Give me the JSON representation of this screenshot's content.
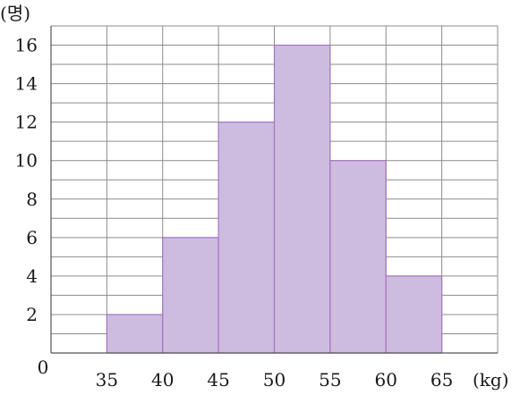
{
  "chart_data": {
    "type": "bar",
    "title": "",
    "histogram": true,
    "bins": [
      {
        "from": 35,
        "to": 40,
        "value": 2
      },
      {
        "from": 40,
        "to": 45,
        "value": 6
      },
      {
        "from": 45,
        "to": 50,
        "value": 12
      },
      {
        "from": 50,
        "to": 55,
        "value": 16
      },
      {
        "from": 55,
        "to": 60,
        "value": 10
      },
      {
        "from": 60,
        "to": 65,
        "value": 4
      }
    ],
    "x_ticks": [
      "35",
      "40",
      "45",
      "50",
      "55",
      "60",
      "65"
    ],
    "y_ticks": [
      "2",
      "4",
      "6",
      "8",
      "10",
      "12",
      "14",
      "16"
    ],
    "origin_label": "0",
    "xlabel": "(kg)",
    "ylabel": "(명)",
    "xlim": [
      30,
      70
    ],
    "ylim": [
      0,
      17
    ],
    "grid": true,
    "colors": {
      "bar_fill": "#cdbcdf",
      "bar_stroke": "#a676c4",
      "grid": "#8c8c8c"
    }
  }
}
